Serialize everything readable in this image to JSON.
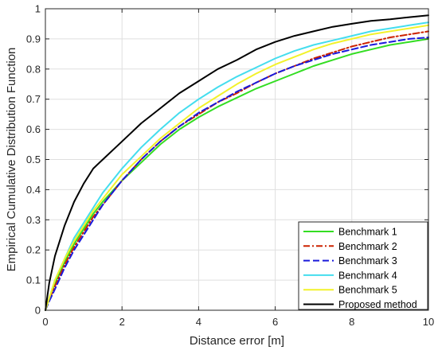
{
  "chart_data": {
    "type": "line",
    "title": "",
    "xlabel": "Distance error [m]",
    "ylabel": "Empirical Cumulative Distribution Function",
    "xlim": [
      0,
      10
    ],
    "ylim": [
      0,
      1
    ],
    "xticks": [
      0,
      2,
      4,
      6,
      8,
      10
    ],
    "yticks": [
      0,
      0.1,
      0.2,
      0.3,
      0.4,
      0.5,
      0.6,
      0.7,
      0.8,
      0.9,
      1
    ],
    "grid": true,
    "legend_position": "bottom-right",
    "x": [
      0,
      0.1,
      0.25,
      0.5,
      0.75,
      1,
      1.25,
      1.5,
      2,
      2.5,
      3,
      3.5,
      4,
      4.5,
      5,
      5.5,
      6,
      6.5,
      7,
      7.5,
      8,
      8.5,
      9,
      9.5,
      10
    ],
    "series": [
      {
        "name": "Benchmark 1",
        "color": "#33dd22",
        "dash": "solid",
        "values": [
          0,
          0.04,
          0.09,
          0.16,
          0.22,
          0.27,
          0.32,
          0.36,
          0.43,
          0.49,
          0.55,
          0.6,
          0.64,
          0.675,
          0.705,
          0.735,
          0.76,
          0.785,
          0.81,
          0.83,
          0.85,
          0.865,
          0.88,
          0.89,
          0.9
        ]
      },
      {
        "name": "Benchmark 2",
        "color": "#cc2200",
        "dash": "dashdot",
        "values": [
          0,
          0.035,
          0.08,
          0.15,
          0.21,
          0.26,
          0.31,
          0.35,
          0.43,
          0.5,
          0.56,
          0.61,
          0.65,
          0.69,
          0.72,
          0.755,
          0.785,
          0.81,
          0.835,
          0.855,
          0.875,
          0.89,
          0.905,
          0.915,
          0.925
        ]
      },
      {
        "name": "Benchmark 3",
        "color": "#1a1adb",
        "dash": "dashed",
        "values": [
          0,
          0.03,
          0.07,
          0.14,
          0.2,
          0.25,
          0.3,
          0.35,
          0.43,
          0.5,
          0.56,
          0.61,
          0.655,
          0.69,
          0.725,
          0.755,
          0.785,
          0.81,
          0.83,
          0.85,
          0.865,
          0.88,
          0.89,
          0.9,
          0.905
        ]
      },
      {
        "name": "Benchmark 4",
        "color": "#44ddee",
        "dash": "solid",
        "values": [
          0,
          0.04,
          0.1,
          0.17,
          0.24,
          0.29,
          0.34,
          0.39,
          0.47,
          0.54,
          0.6,
          0.655,
          0.7,
          0.74,
          0.775,
          0.805,
          0.835,
          0.86,
          0.88,
          0.895,
          0.91,
          0.925,
          0.935,
          0.945,
          0.955
        ]
      },
      {
        "name": "Benchmark 5",
        "color": "#f2f22a",
        "dash": "solid",
        "values": [
          0,
          0.04,
          0.1,
          0.17,
          0.23,
          0.28,
          0.33,
          0.37,
          0.45,
          0.51,
          0.57,
          0.62,
          0.67,
          0.71,
          0.75,
          0.785,
          0.815,
          0.84,
          0.865,
          0.885,
          0.9,
          0.915,
          0.925,
          0.935,
          0.945
        ]
      },
      {
        "name": "Proposed method",
        "color": "#000000",
        "dash": "solid",
        "values": [
          0,
          0.09,
          0.18,
          0.28,
          0.36,
          0.42,
          0.47,
          0.5,
          0.56,
          0.62,
          0.67,
          0.72,
          0.76,
          0.8,
          0.83,
          0.865,
          0.89,
          0.91,
          0.925,
          0.94,
          0.95,
          0.96,
          0.965,
          0.972,
          0.978
        ]
      }
    ]
  }
}
